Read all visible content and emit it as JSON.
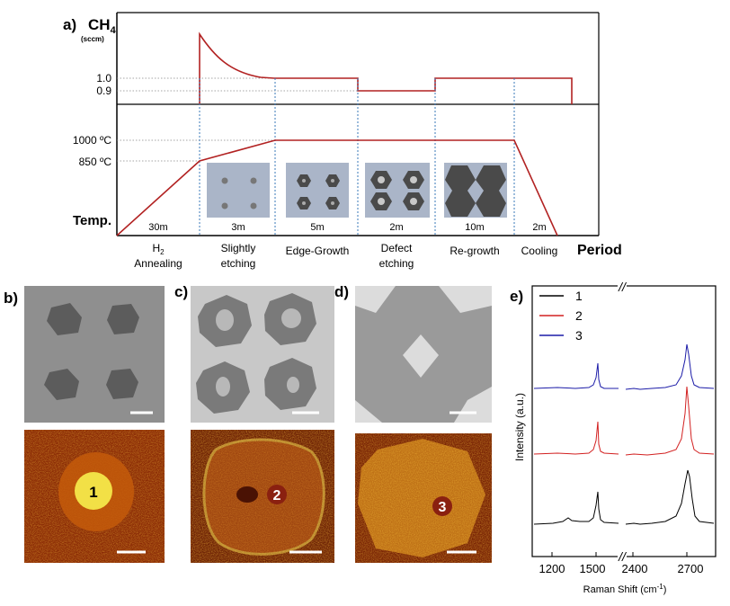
{
  "panel_a": {
    "label": "a)",
    "ch4_label": "CH",
    "ch4_sub": "4",
    "ch4_unit": "(sccm)",
    "level_1_0": "1.0",
    "level_0_9": "0.9",
    "temp_1000": "1000 ºC",
    "temp_850": "850 ºC",
    "temp_label": "Temp.",
    "period_label": "Period",
    "durations": [
      "30m",
      "3m",
      "5m",
      "2m",
      "10m",
      "2m"
    ],
    "phase_h2": "H",
    "phase_h2_sub": "2",
    "phase_annealing": "Annealing",
    "phases": [
      {
        "line1": "Slightly",
        "line2": "etching"
      },
      {
        "line1": "Edge-Growth",
        "line2": ""
      },
      {
        "line1": "Defect",
        "line2": "etching"
      },
      {
        "line1": "Re-growth",
        "line2": ""
      },
      {
        "line1": "Cooling",
        "line2": ""
      }
    ]
  },
  "panel_b": {
    "label": "b)",
    "marker": "1"
  },
  "panel_c": {
    "label": "c)",
    "marker": "2"
  },
  "panel_d": {
    "label": "d)",
    "marker": "3"
  },
  "panel_e": {
    "label": "e)",
    "legend": [
      "1",
      "2",
      "3"
    ],
    "ylabel": "Intensity (a.u.)",
    "xlabel": "Raman Shift (cm",
    "xlabel_sup": "-1",
    "xlabel_tail": ")",
    "x_ticks": [
      "1200",
      "1500",
      "2400",
      "2700"
    ],
    "axis_break": "//"
  },
  "colors": {
    "line_red": "#b22222",
    "series_1": "#000000",
    "series_2": "#d22020",
    "series_3": "#1c1ca8",
    "dotted_blue": "#3a78b8",
    "schematic_bg": "#aab5c8",
    "schematic_flake": "#4a4a4a"
  },
  "chart_data": {
    "type": "line",
    "title": "",
    "xlabel": "Raman Shift (cm-1)",
    "ylabel": "Intensity (a.u.)",
    "x_ranges": [
      [
        1100,
        1700
      ],
      [
        2400,
        2850
      ]
    ],
    "series": [
      {
        "name": "1",
        "peaks": [
          {
            "x": 1350,
            "rel": 0.12
          },
          {
            "x": 1585,
            "rel": 0.55
          },
          {
            "x": 2690,
            "rel": 1.0
          }
        ]
      },
      {
        "name": "2",
        "peaks": [
          {
            "x": 1585,
            "rel": 0.45
          },
          {
            "x": 2680,
            "rel": 1.0
          }
        ]
      },
      {
        "name": "3",
        "peaks": [
          {
            "x": 1585,
            "rel": 0.38
          },
          {
            "x": 2680,
            "rel": 1.0
          }
        ]
      }
    ]
  }
}
